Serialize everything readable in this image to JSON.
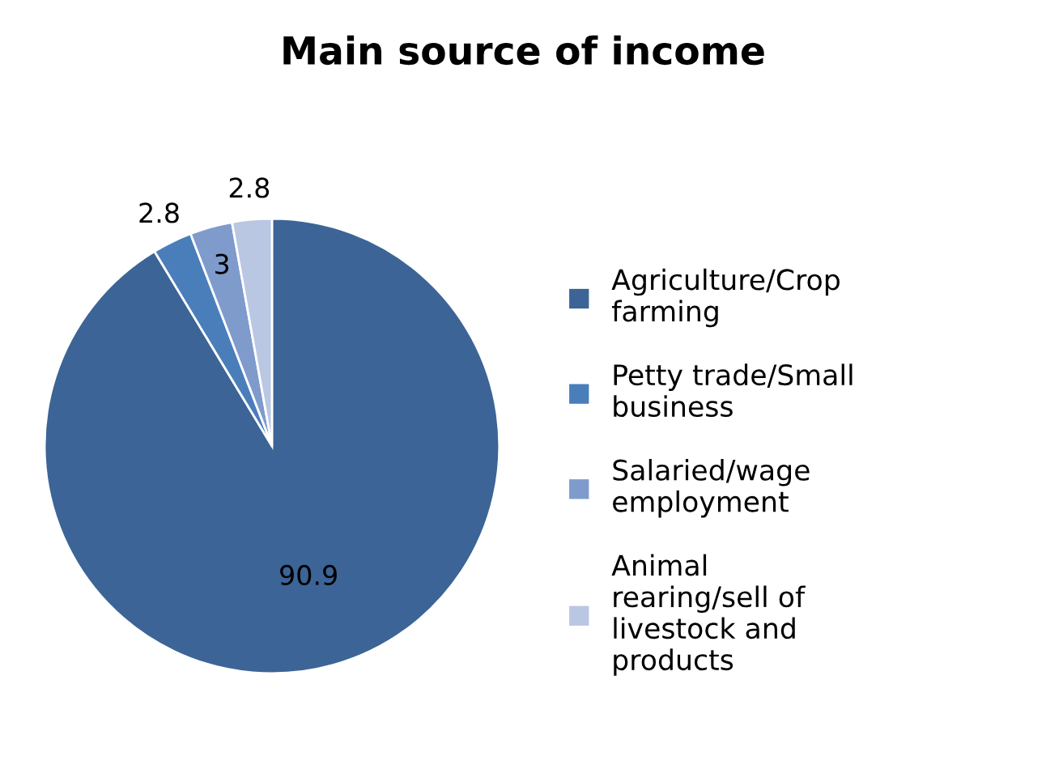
{
  "chart_data": {
    "type": "pie",
    "title": "Main source of income",
    "categories": [
      "Agriculture/Crop farming",
      "Petty trade/Small business",
      "Salaried/wage employment",
      "Animal rearing/sell of livestock and products"
    ],
    "values": [
      90.9,
      2.8,
      3,
      2.8
    ],
    "colors": [
      "#3c6496",
      "#4a7ebb",
      "#7f9bcc",
      "#b9c7e3"
    ],
    "data_labels": true,
    "legend": "right"
  }
}
